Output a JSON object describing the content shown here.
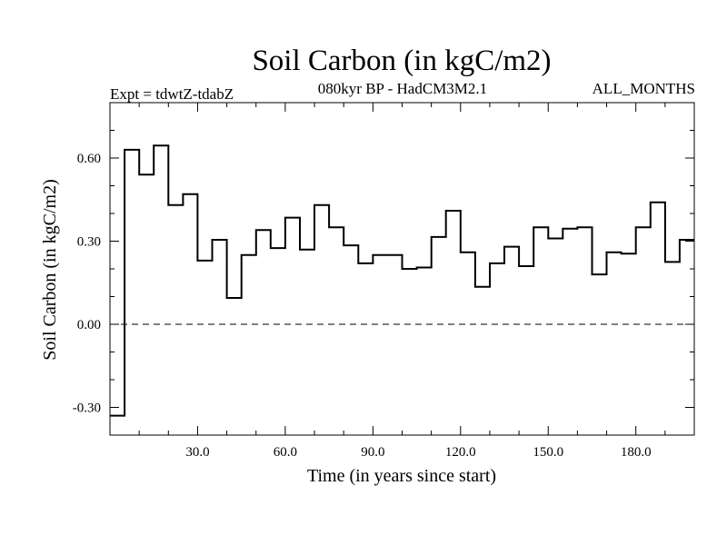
{
  "chart_data": {
    "type": "line",
    "title": "Soil Carbon (in kgC/m2)",
    "subtitle": "080kyr BP - HadCM3M2.1",
    "experiment": "Expt = tdwtZ-tdabZ",
    "period": "ALL_MONTHS",
    "xlabel": "Time (in years since start)",
    "ylabel": "Soil Carbon (in kgC/m2)",
    "xlim": [
      0,
      200
    ],
    "ylim": [
      -0.4,
      0.8
    ],
    "x_ticks": [
      30,
      60,
      90,
      120,
      150,
      180
    ],
    "x_tick_labels": [
      "30.0",
      "60.0",
      "90.0",
      "120.0",
      "150.0",
      "180.0"
    ],
    "y_ticks": [
      -0.3,
      0.0,
      0.3,
      0.6
    ],
    "y_tick_labels": [
      "-0.30",
      "0.00",
      "0.30",
      "0.60"
    ],
    "reference_line": 0.0,
    "step_width": 5,
    "x": [
      0,
      5,
      10,
      15,
      20,
      25,
      30,
      35,
      40,
      45,
      50,
      55,
      60,
      65,
      70,
      75,
      80,
      85,
      90,
      95,
      100,
      105,
      110,
      115,
      120,
      125,
      130,
      135,
      140,
      145,
      150,
      155,
      160,
      165,
      170,
      175,
      180,
      185,
      190,
      195
    ],
    "series": [
      {
        "name": "Soil Carbon",
        "values": [
          -0.33,
          0.63,
          0.54,
          0.645,
          0.43,
          0.47,
          0.23,
          0.305,
          0.095,
          0.25,
          0.34,
          0.275,
          0.385,
          0.27,
          0.43,
          0.35,
          0.285,
          0.22,
          0.25,
          0.25,
          0.2,
          0.205,
          0.315,
          0.41,
          0.26,
          0.135,
          0.22,
          0.28,
          0.21,
          0.35,
          0.31,
          0.345,
          0.35,
          0.18,
          0.26,
          0.255,
          0.35,
          0.44,
          0.225,
          0.305
        ]
      }
    ]
  }
}
